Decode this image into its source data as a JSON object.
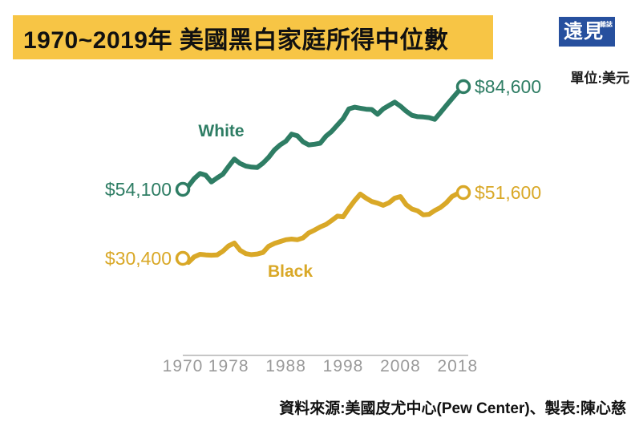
{
  "header": {
    "title": "1970~2019年 美國黑白家庭所得中位數",
    "logo": {
      "main": "遠見",
      "sub": "雜誌"
    },
    "unit_label": "單位:美元"
  },
  "chart_data": {
    "type": "line",
    "title": "1970~2019年 美國黑白家庭所得中位數",
    "unit": "美元",
    "grid": false,
    "legend_position": "inline-on-lines",
    "x_ticks": [
      1970,
      1978,
      1988,
      1998,
      2008,
      2018
    ],
    "years": [
      1970,
      1971,
      1972,
      1973,
      1974,
      1975,
      1976,
      1977,
      1978,
      1979,
      1980,
      1981,
      1982,
      1983,
      1984,
      1985,
      1986,
      1987,
      1988,
      1989,
      1990,
      1991,
      1992,
      1993,
      1994,
      1995,
      1996,
      1997,
      1998,
      1999,
      2000,
      2001,
      2002,
      2003,
      2004,
      2005,
      2006,
      2007,
      2008,
      2009,
      2010,
      2011,
      2012,
      2013,
      2014,
      2015,
      2016,
      2017,
      2018,
      2019
    ],
    "series": [
      {
        "name": "White",
        "color": "#2E7D64",
        "start_label": "$54,100",
        "end_label": "$84,600",
        "values": [
          54100,
          55100,
          57300,
          58800,
          58300,
          56300,
          57500,
          58600,
          60900,
          63100,
          61800,
          61000,
          60700,
          60600,
          61900,
          63600,
          65800,
          67300,
          68400,
          70500,
          70000,
          68200,
          67300,
          67500,
          67800,
          69900,
          71300,
          73200,
          75100,
          78000,
          78500,
          78200,
          77900,
          77800,
          76400,
          78000,
          79000,
          80000,
          78800,
          77300,
          76100,
          75700,
          75600,
          75400,
          74900,
          76900,
          79000,
          81000,
          83000,
          84600
        ]
      },
      {
        "name": "Black",
        "color": "#D9A827",
        "start_label": "$30,400",
        "end_label": "$51,600",
        "values": [
          30400,
          29100,
          30900,
          31700,
          31500,
          31400,
          31500,
          32700,
          34400,
          35300,
          33000,
          31900,
          31600,
          31800,
          32300,
          34300,
          35200,
          35800,
          36400,
          36600,
          36400,
          37000,
          38600,
          39500,
          40500,
          41300,
          42600,
          44000,
          43800,
          46500,
          49000,
          51100,
          49800,
          48700,
          48200,
          47500,
          48300,
          49800,
          50300,
          47700,
          46300,
          45700,
          44400,
          44600,
          45800,
          46800,
          48300,
          50300,
          51300,
          51600
        ]
      }
    ]
  },
  "footer": {
    "source": "資料來源:美國皮尤中心(Pew Center)、製表:陳心慈"
  },
  "colors": {
    "title-bg": "#F7C545",
    "logo-bg": "#27509E",
    "axis": "#b3b3b3",
    "tick": "#9a9a9a"
  }
}
